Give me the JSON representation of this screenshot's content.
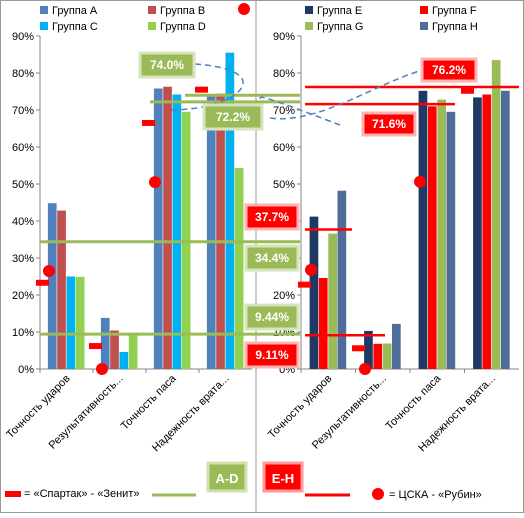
{
  "chart_data": [
    {
      "type": "bar",
      "categories": [
        "Точность ударов",
        "Результативность ударов",
        "Точность паса",
        "Надежность вратарей"
      ],
      "series": [
        {
          "name": "Группа A",
          "values": [
            44.8,
            13.8,
            75.8,
            74.0
          ],
          "color": "#4f81bd"
        },
        {
          "name": "Группа B",
          "values": [
            42.8,
            10.4,
            76.3,
            74.4
          ],
          "color": "#c0504d"
        },
        {
          "name": "Группа C",
          "values": [
            25.0,
            4.6,
            74.2,
            85.5
          ],
          "color": "#00b0f0"
        },
        {
          "name": "Группа D",
          "values": [
            24.9,
            9.5,
            69.5,
            54.3
          ],
          "color": "#92d050"
        }
      ],
      "ylim": [
        0,
        90
      ],
      "yticks": [
        "0%",
        "10%",
        "20%",
        "30%",
        "40%",
        "50%",
        "60%",
        "70%",
        "80%",
        "90%"
      ],
      "grid": false,
      "legend": "top",
      "group_label": "A-D",
      "annotations": [
        {
          "text": "74.0%",
          "value": 74.0,
          "style": "green"
        },
        {
          "text": "72.2%",
          "value": 72.2,
          "style": "green"
        },
        {
          "text": "34.4%",
          "value": 34.4,
          "style": "green"
        },
        {
          "text": "9.44%",
          "value": 9.44,
          "style": "green"
        }
      ],
      "markers": {
        "spartak_zenit": [
          23.3,
          6.2,
          66.5,
          75.5
        ],
        "cska_rubin": [
          26.5,
          0.0,
          50.5,
          null
        ]
      }
    },
    {
      "type": "bar",
      "categories": [
        "Точность ударов",
        "Результативность ударов",
        "Точность паса",
        "Надежность вратарей"
      ],
      "series": [
        {
          "name": "Группа E",
          "values": [
            41.2,
            10.3,
            75.2,
            73.4
          ],
          "color": "#1f3864"
        },
        {
          "name": "Группа F",
          "values": [
            24.6,
            6.8,
            71.0,
            74.2
          ],
          "color": "#ff0000"
        },
        {
          "name": "Группа G",
          "values": [
            36.6,
            6.9,
            72.8,
            83.5
          ],
          "color": "#9bbb59"
        },
        {
          "name": "Группа H",
          "values": [
            48.2,
            12.2,
            69.5,
            75.2
          ],
          "color": "#4f6d9a"
        }
      ],
      "ylim": [
        0,
        90
      ],
      "yticks": [
        "0%",
        "10%",
        "20%",
        "30%",
        "40%",
        "50%",
        "60%",
        "70%",
        "80%",
        "90%"
      ],
      "grid": false,
      "legend": "top",
      "group_label": "E-H",
      "annotations": [
        {
          "text": "76.2%",
          "value": 76.2,
          "style": "red"
        },
        {
          "text": "71.6%",
          "value": 71.6,
          "style": "red"
        },
        {
          "text": "37.7%",
          "value": 37.7,
          "style": "red"
        },
        {
          "text": "9.11%",
          "value": 9.11,
          "style": "red"
        }
      ],
      "markers": {
        "spartak_zenit": [
          22.8,
          5.6,
          null,
          75.2
        ],
        "cska_rubin": [
          26.8,
          0.0,
          50.6,
          null
        ]
      }
    }
  ],
  "legend_bottom": {
    "spartak_zenit": "= «Спартак» - «Зенит»",
    "cska_rubin": "= ЦСКА - «Рубин»"
  },
  "colors": {
    "avg_green": "#9bbb59",
    "avg_red": "#ff0000",
    "axis": "#868686",
    "marker_red": "#ff0000"
  }
}
